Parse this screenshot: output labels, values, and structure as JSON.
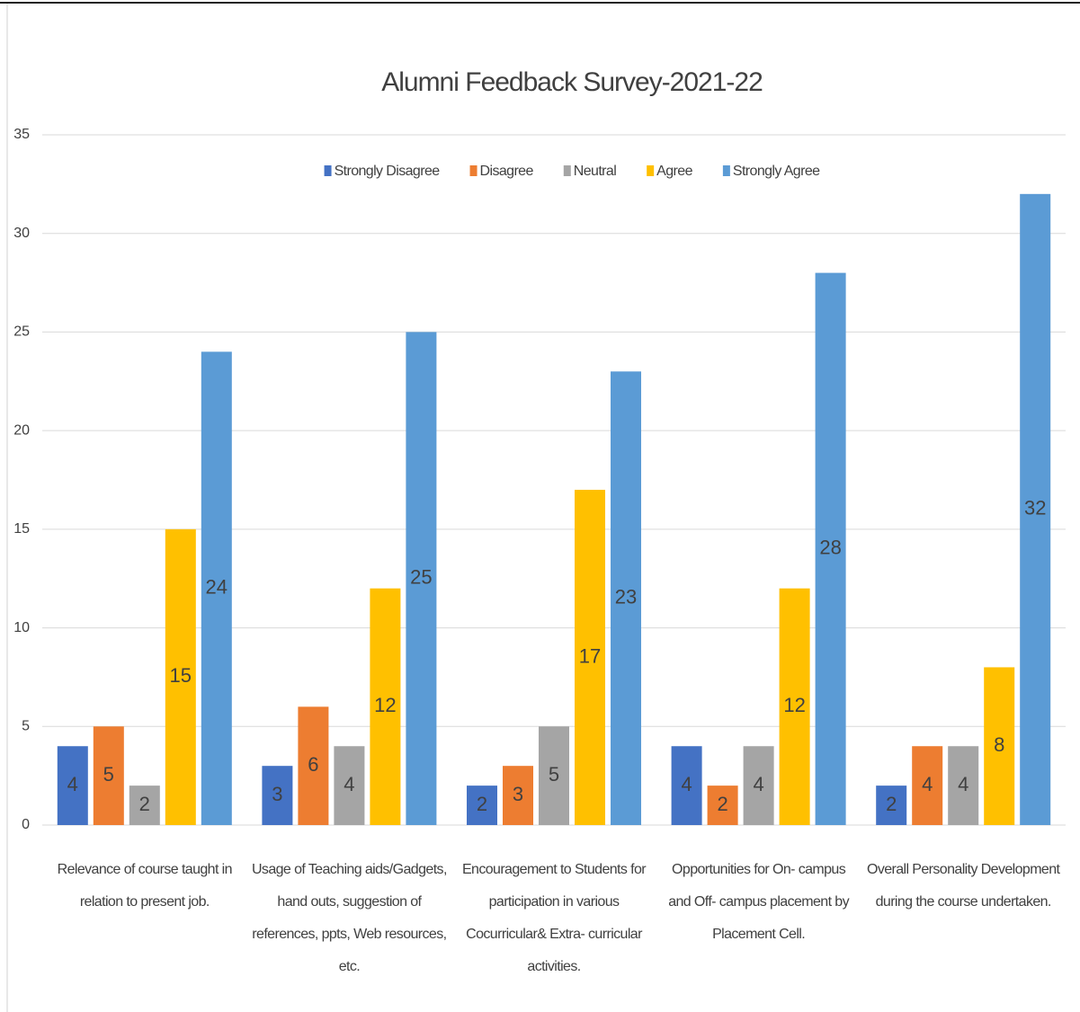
{
  "chart_data": {
    "type": "bar",
    "title": "Alumni Feedback Survey-2021-22",
    "categories": [
      "Relevance of course taught in relation to present job.",
      "Usage of Teaching aids/Gadgets, hand outs, suggestion of references, ppts, Web resources, etc.",
      "Encouragement to Students for participation in various Cocurricular& Extra- curricular activities.",
      "Opportunities for On- campus and Off- campus placement by Placement Cell.",
      "Overall Personality Development during the course undertaken."
    ],
    "series": [
      {
        "name": "Strongly Disagree",
        "color": "#4472c4",
        "values": [
          4,
          3,
          2,
          4,
          2
        ]
      },
      {
        "name": "Disagree",
        "color": "#ed7d31",
        "values": [
          5,
          6,
          3,
          2,
          4
        ]
      },
      {
        "name": "Neutral",
        "color": "#a5a5a5",
        "values": [
          2,
          4,
          5,
          4,
          4
        ]
      },
      {
        "name": "Agree",
        "color": "#ffc000",
        "values": [
          15,
          12,
          17,
          12,
          8
        ]
      },
      {
        "name": "Strongly Agree",
        "color": "#5b9bd5",
        "values": [
          24,
          25,
          23,
          28,
          32
        ]
      }
    ],
    "ylim": [
      0,
      35
    ],
    "yticks": [
      0,
      5,
      10,
      15,
      20,
      25,
      30,
      35
    ],
    "grid": true,
    "legend": "top"
  }
}
